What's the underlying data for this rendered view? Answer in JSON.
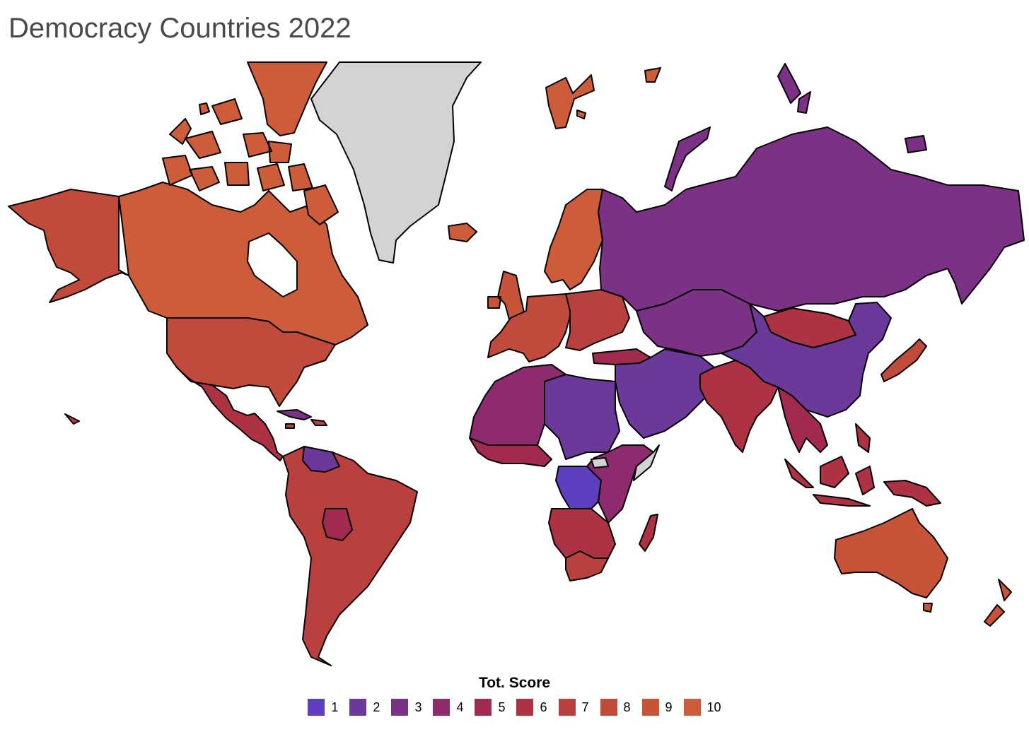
{
  "title": "Democracy Countries 2022",
  "colors": {
    "no_data": "#d3d3d3",
    "border": "#000000"
  },
  "legend": {
    "title": "Tot. Score",
    "items": [
      {
        "label": "1",
        "color": "#5e3fc0"
      },
      {
        "label": "2",
        "color": "#6c3899"
      },
      {
        "label": "3",
        "color": "#7b3184"
      },
      {
        "label": "4",
        "color": "#8d2b6e"
      },
      {
        "label": "5",
        "color": "#a22a4e"
      },
      {
        "label": "6",
        "color": "#ad3244"
      },
      {
        "label": "7",
        "color": "#b8403f"
      },
      {
        "label": "8",
        "color": "#c04b3c"
      },
      {
        "label": "9",
        "color": "#c75438"
      },
      {
        "label": "10",
        "color": "#cd5c3a"
      }
    ]
  },
  "regions": [
    {
      "name": "canada",
      "score": 10
    },
    {
      "name": "arctic-islands",
      "score": 10
    },
    {
      "name": "alaska",
      "score": 8
    },
    {
      "name": "usa",
      "score": 8
    },
    {
      "name": "mexico-central-america",
      "score": 6
    },
    {
      "name": "cuba",
      "score": 3
    },
    {
      "name": "caribbean",
      "score": 7
    },
    {
      "name": "south-america",
      "score": 7
    },
    {
      "name": "venezuela",
      "score": 2
    },
    {
      "name": "bolivia",
      "score": 5
    },
    {
      "name": "greenland",
      "score": null
    },
    {
      "name": "iceland",
      "score": 10
    },
    {
      "name": "svalbard",
      "score": 10
    },
    {
      "name": "scandinavia",
      "score": 10
    },
    {
      "name": "uk-ireland",
      "score": 9
    },
    {
      "name": "western-europe",
      "score": 8
    },
    {
      "name": "eastern-europe",
      "score": 7
    },
    {
      "name": "turkey",
      "score": 5
    },
    {
      "name": "russia",
      "score": 3
    },
    {
      "name": "novaya-zemlya",
      "score": 3
    },
    {
      "name": "central-asia",
      "score": 3
    },
    {
      "name": "mongolia",
      "score": 6
    },
    {
      "name": "china",
      "score": 2
    },
    {
      "name": "middle-east",
      "score": 2
    },
    {
      "name": "india",
      "score": 6
    },
    {
      "name": "southeast-asia",
      "score": 5
    },
    {
      "name": "japan",
      "score": 8
    },
    {
      "name": "indonesia",
      "score": 6
    },
    {
      "name": "new-guinea",
      "score": 6
    },
    {
      "name": "australia",
      "score": 9
    },
    {
      "name": "new-zealand",
      "score": 9
    },
    {
      "name": "north-africa",
      "score": 4
    },
    {
      "name": "libya-sudan",
      "score": 2
    },
    {
      "name": "west-africa",
      "score": 5
    },
    {
      "name": "drc",
      "score": 1
    },
    {
      "name": "east-africa",
      "score": 4
    },
    {
      "name": "somalia",
      "score": null
    },
    {
      "name": "southern-africa",
      "score": 6
    },
    {
      "name": "south-africa",
      "score": 7
    },
    {
      "name": "madagascar",
      "score": 6
    }
  ]
}
